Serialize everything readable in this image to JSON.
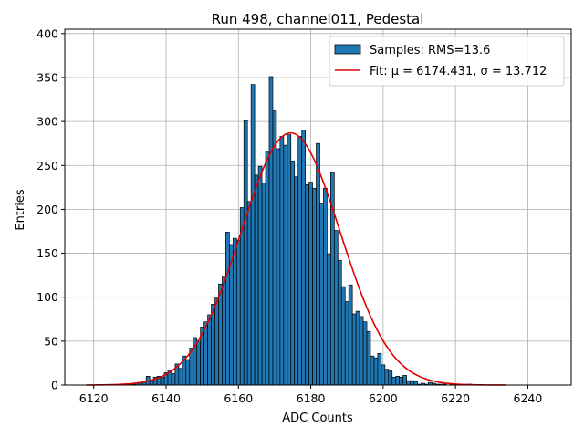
{
  "chart_data": {
    "type": "bar",
    "title": "Run 498, channel011, Pedestal",
    "xlabel": "ADC Counts",
    "ylabel": "Entries",
    "xlim": [
      6112,
      6252
    ],
    "ylim": [
      0,
      405
    ],
    "xticks": [
      6120,
      6140,
      6160,
      6180,
      6200,
      6220,
      6240
    ],
    "yticks": [
      0,
      50,
      100,
      150,
      200,
      250,
      300,
      350,
      400
    ],
    "grid": true,
    "legend_position": "top-right",
    "bar_color": "#1f77b4",
    "fit_color": "#e00000",
    "histogram": {
      "name": "Samples: RMS=13.6",
      "bin_width": 1,
      "x": [
        6130,
        6131,
        6132,
        6133,
        6134,
        6135,
        6136,
        6137,
        6138,
        6139,
        6140,
        6141,
        6142,
        6143,
        6144,
        6145,
        6146,
        6147,
        6148,
        6149,
        6150,
        6151,
        6152,
        6153,
        6154,
        6155,
        6156,
        6157,
        6158,
        6159,
        6160,
        6161,
        6162,
        6163,
        6164,
        6165,
        6166,
        6167,
        6168,
        6169,
        6170,
        6171,
        6172,
        6173,
        6174,
        6175,
        6176,
        6177,
        6178,
        6179,
        6180,
        6181,
        6182,
        6183,
        6184,
        6185,
        6186,
        6187,
        6188,
        6189,
        6190,
        6191,
        6192,
        6193,
        6194,
        6195,
        6196,
        6197,
        6198,
        6199,
        6200,
        6201,
        6202,
        6203,
        6204,
        6205,
        6206,
        6207,
        6208,
        6209,
        6210,
        6211,
        6212,
        6213,
        6214,
        6215,
        6216,
        6217,
        6218,
        6219,
        6220,
        6224
      ],
      "values": [
        1,
        1,
        2,
        3,
        4,
        10,
        5,
        9,
        10,
        9,
        14,
        17,
        13,
        24,
        19,
        33,
        29,
        42,
        54,
        50,
        66,
        72,
        80,
        92,
        99,
        115,
        124,
        174,
        160,
        167,
        165,
        202,
        301,
        209,
        342,
        239,
        249,
        230,
        266,
        351,
        312,
        269,
        283,
        273,
        285,
        255,
        237,
        283,
        290,
        228,
        231,
        224,
        275,
        206,
        224,
        149,
        242,
        176,
        142,
        112,
        95,
        114,
        81,
        84,
        78,
        72,
        61,
        33,
        31,
        36,
        23,
        18,
        16,
        9,
        10,
        9,
        11,
        5,
        5,
        4,
        1,
        2,
        1,
        3,
        2,
        1,
        1,
        1,
        0,
        1,
        1,
        1
      ]
    },
    "fit": {
      "name": "Fit: μ = 6174.431, σ = 13.712",
      "mu": 6174.431,
      "sigma": 13.712,
      "amplitude": 287,
      "x_range": [
        6118,
        6234
      ]
    }
  }
}
